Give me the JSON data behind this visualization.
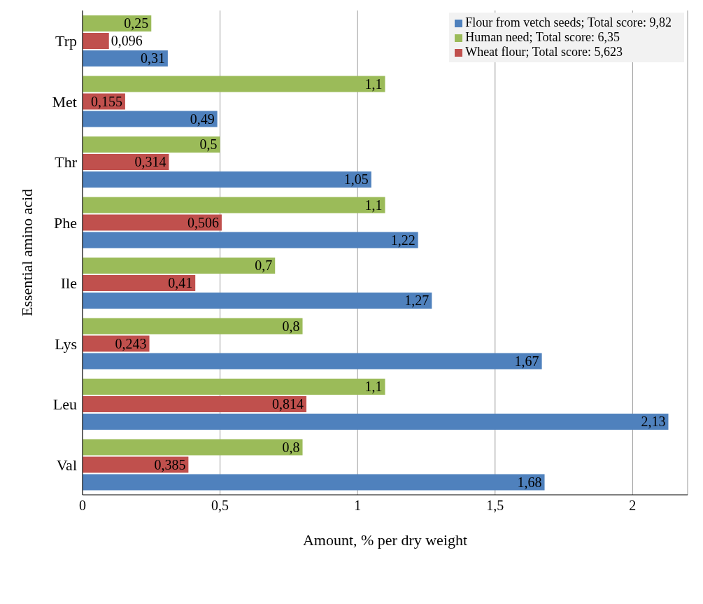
{
  "chart_data": {
    "type": "bar",
    "orientation": "horizontal",
    "xlabel": "Amount, % per dry weight",
    "ylabel": "Essential amino acid",
    "categories": [
      "Trp",
      "Met",
      "Thr",
      "Phe",
      "Ile",
      "Lys",
      "Leu",
      "Val"
    ],
    "series": [
      {
        "name": "Human need; Total score: 6,35",
        "color": "#9bbb59",
        "values": [
          0.25,
          1.1,
          0.5,
          1.1,
          0.7,
          0.8,
          1.1,
          0.8
        ],
        "value_labels": [
          "0,25",
          "1,1",
          "0,5",
          "1,1",
          "0,7",
          "0,8",
          "1,1",
          "0,8"
        ]
      },
      {
        "name": "Wheat flour; Total score: 5,623",
        "color": "#c0504d",
        "values": [
          0.096,
          0.155,
          0.314,
          0.506,
          0.41,
          0.243,
          0.814,
          0.385
        ],
        "value_labels": [
          "0,096",
          "0,155",
          "0,314",
          "0,506",
          "0,41",
          "0,243",
          "0,814",
          "0,385"
        ]
      },
      {
        "name": "Flour from vetch seeds; Total score: 9,82",
        "color": "#4f81bd",
        "values": [
          0.31,
          0.49,
          1.05,
          1.22,
          1.27,
          1.67,
          2.13,
          1.68
        ],
        "value_labels": [
          "0,31",
          "0,49",
          "1,05",
          "1,22",
          "1,27",
          "1,67",
          "2,13",
          "1,68"
        ]
      }
    ],
    "xlim": [
      0,
      2.2
    ],
    "xticks": [
      0,
      {
        "value": 0.5,
        "label": "0,5"
      },
      1,
      {
        "value": 1.5,
        "label": "1,5"
      },
      2
    ],
    "grid": "x",
    "legend": "top right"
  }
}
